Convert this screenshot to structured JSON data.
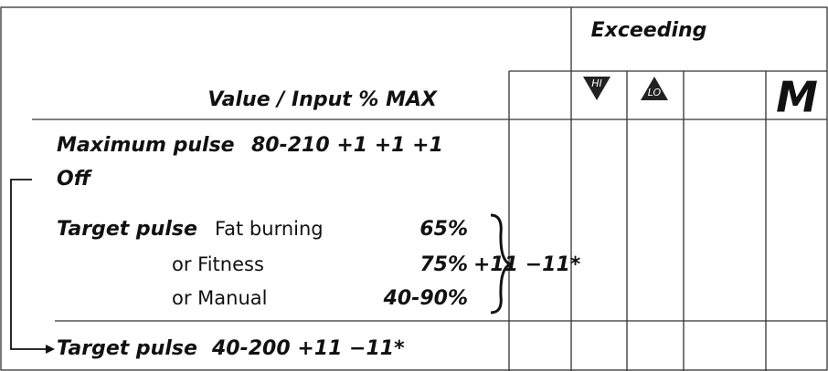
{
  "header": {
    "group_title": "Exceeding",
    "column_title": "Value / Input % MAX",
    "icons": [
      "HI",
      "LO"
    ],
    "mode": "M"
  },
  "rows": {
    "maximum_pulse": {
      "label": "Maximum pulse",
      "value": "80-210 +1 +1 +1"
    },
    "off": "Off",
    "target_pulse": {
      "label": "Target pulse",
      "options": [
        {
          "name": "Fat burning",
          "value": "65%"
        },
        {
          "name": "or Fitness",
          "value": "75%"
        },
        {
          "name": "or Manual",
          "value": "40-90%"
        }
      ],
      "adjust": "+11 −11*"
    },
    "manual_target": {
      "label": "Target pulse",
      "value": "40-200 +11 −11*"
    }
  }
}
